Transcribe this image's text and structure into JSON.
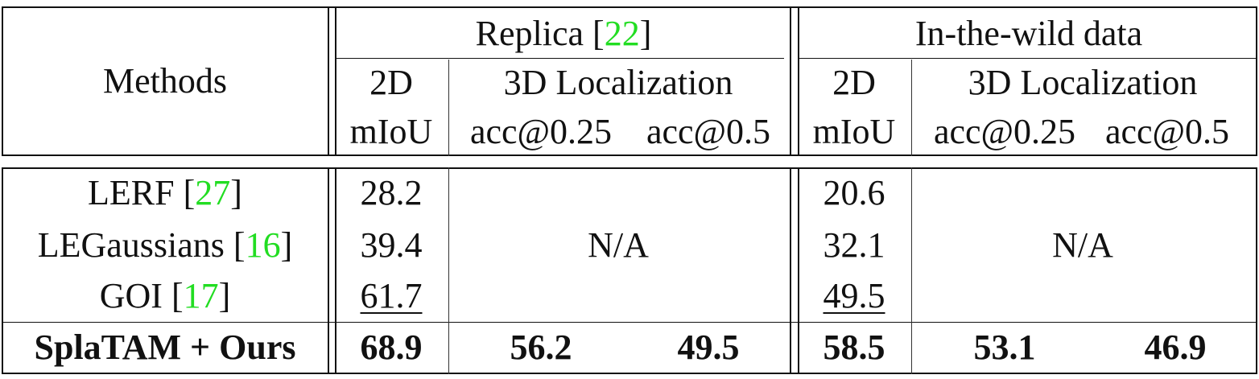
{
  "header": {
    "methods": "Methods",
    "groups": [
      {
        "name": "Replica [",
        "ref": "22",
        "close": "]"
      },
      {
        "name": "In-the-wild data",
        "ref": "",
        "close": ""
      }
    ],
    "sub": {
      "d2": "2D",
      "loc3d": "3D Localization"
    },
    "metrics": {
      "miou": "mIoU",
      "acc25": "acc@0.25",
      "acc5": "acc@0.5"
    }
  },
  "rows": [
    {
      "name": "LERF [",
      "ref": "27",
      "close": "]",
      "replica_miou": "28.2",
      "wild_miou": "20.6"
    },
    {
      "name": "LEGaussians [",
      "ref": "16",
      "close": "]",
      "replica_miou": "39.4",
      "wild_miou": "32.1"
    },
    {
      "name": "GOI [",
      "ref": "17",
      "close": "]",
      "replica_miou": "61.7",
      "wild_miou": "49.5"
    }
  ],
  "na": "N/A",
  "ours": {
    "name": "SplaTAM + Ours",
    "replica_miou": "68.9",
    "replica_acc25": "56.2",
    "replica_acc5": "49.5",
    "wild_miou": "58.5",
    "wild_acc25": "53.1",
    "wild_acc5": "46.9"
  },
  "colors": {
    "ref": "#22dd22",
    "text": "#111111"
  }
}
